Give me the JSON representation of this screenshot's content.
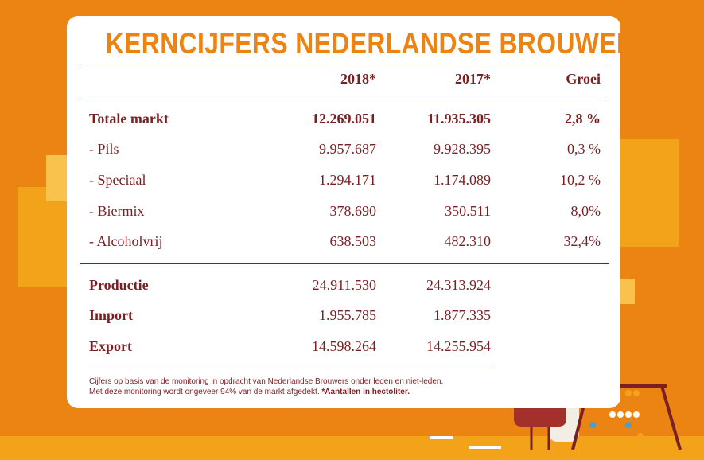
{
  "header": {
    "title": "KERNCIJFERS NEDERLANDSE BROUWERS"
  },
  "table": {
    "columns": [
      "2018*",
      "2017*",
      "Groei"
    ],
    "sections": [
      {
        "rows": [
          [
            "Totale markt",
            "12.269.051",
            "11.935.305",
            "2,8 %"
          ],
          [
            "- Pils",
            "9.957.687",
            "9.928.395",
            "0,3 %"
          ],
          [
            "- Speciaal",
            "1.294.171",
            "1.174.089",
            "10,2 %"
          ],
          [
            "- Biermix",
            "378.690",
            "350.511",
            "8,0%"
          ],
          [
            "- Alcoholvrij",
            "638.503",
            "482.310",
            "32,4%"
          ]
        ]
      },
      {
        "rows": [
          [
            "Productie",
            "24.911.530",
            "24.313.924"
          ],
          [
            "Import",
            "1.955.785",
            "1.877.335"
          ],
          [
            "Export",
            "14.598.264",
            "14.255.954"
          ]
        ]
      }
    ]
  },
  "footnote": {
    "line1": "Cijfers op basis van de monitoring in opdracht van Nederlandse Brouwers onder leden en niet-leden.",
    "line2": "Met deze monitoring wordt ongeveer 94% van de markt afgedekt.",
    "line2_bold": "*Aantallen in hectoliter."
  }
}
